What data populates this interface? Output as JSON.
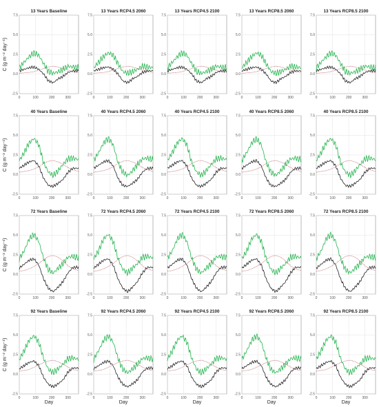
{
  "figure": {
    "xlabel": "Day",
    "ylabel": "C (g m⁻² day⁻¹)",
    "series_colors": {
      "green": "#22b34c",
      "black": "#222222",
      "red": "#b5535a"
    }
  },
  "chart_data": {
    "type": "line",
    "ylim": [
      -2.5,
      7.5
    ],
    "xlim": [
      0,
      365
    ],
    "xticks": [
      0,
      100,
      200,
      300
    ],
    "yticks": [
      -2.5,
      0.0,
      2.5,
      5.0,
      7.5
    ],
    "ytick_labels": [
      "-2.5",
      "0.0",
      "2.5",
      "5.0",
      "7.5"
    ],
    "grid": true,
    "legend": "none",
    "columns": [
      "Baseline",
      "RCP4.5 2060",
      "RCP4.5 2100",
      "RCP8.5 2060",
      "RCP8.5 2100"
    ],
    "panels": [
      {
        "title": "13 Years Baseline"
      },
      {
        "title": "13 Years RCP4.5 2060"
      },
      {
        "title": "13 Years RCP4.5 2100"
      },
      {
        "title": "13 Years RCP8.5 2060"
      },
      {
        "title": "13 Years RCP8.5 2100"
      },
      {
        "title": "40 Years Baseline"
      },
      {
        "title": "40 Years RCP4.5 2060"
      },
      {
        "title": "40 Years RCP4.5 2100"
      },
      {
        "title": "40 Years RCP8.5 2060"
      },
      {
        "title": "40 Years RCP8.5 2100"
      },
      {
        "title": "72 Years Baseline"
      },
      {
        "title": "72 Years RCP4.5 2060"
      },
      {
        "title": "72 Years RCP4.5 2100"
      },
      {
        "title": "72 Years RCP8.5 2060"
      },
      {
        "title": "72 Years RCP8.5 2100"
      },
      {
        "title": "92 Years Baseline"
      },
      {
        "title": "92 Years RCP4.5 2060"
      },
      {
        "title": "92 Years RCP4.5 2100"
      },
      {
        "title": "92 Years RCP8.5 2060"
      },
      {
        "title": "92 Years RCP8.5 2100"
      }
    ],
    "rows": [
      {
        "age": "13 Years",
        "series": [
          {
            "color": "green",
            "x": [
              0,
              30,
              60,
              90,
              120,
              150,
              180,
              210,
              240,
              270,
              300,
              330,
              365
            ],
            "y": [
              0.8,
              1.5,
              2.2,
              2.7,
              2.4,
              1.3,
              0.3,
              0.1,
              0.3,
              0.6,
              1.0,
              0.9,
              0.8
            ]
          },
          {
            "color": "black",
            "x": [
              0,
              30,
              60,
              90,
              120,
              150,
              180,
              210,
              240,
              270,
              300,
              330,
              365
            ],
            "y": [
              0.4,
              0.6,
              0.8,
              0.9,
              0.6,
              0.0,
              -0.9,
              -1.1,
              -0.6,
              -0.3,
              0.2,
              0.4,
              0.4
            ]
          },
          {
            "color": "red",
            "x": [
              0,
              30,
              60,
              90,
              120,
              150,
              180,
              210,
              240,
              270,
              300,
              330,
              365
            ],
            "y": [
              0.1,
              0.15,
              0.2,
              0.3,
              0.5,
              0.7,
              0.9,
              1.0,
              0.9,
              0.7,
              0.5,
              0.3,
              0.2
            ]
          }
        ]
      },
      {
        "age": "40 Years",
        "series": [
          {
            "color": "green",
            "x": [
              0,
              30,
              60,
              90,
              120,
              150,
              180,
              210,
              240,
              270,
              300,
              330,
              365
            ],
            "y": [
              1.8,
              2.8,
              4.0,
              4.6,
              3.8,
              1.5,
              0.3,
              -0.1,
              0.5,
              1.3,
              2.0,
              2.1,
              1.9
            ]
          },
          {
            "color": "black",
            "x": [
              0,
              30,
              60,
              90,
              120,
              150,
              180,
              210,
              240,
              270,
              300,
              330,
              365
            ],
            "y": [
              0.8,
              1.2,
              1.6,
              1.8,
              1.1,
              -0.5,
              -1.4,
              -1.5,
              -1.1,
              -0.6,
              0.3,
              0.8,
              0.8
            ]
          },
          {
            "color": "red",
            "x": [
              0,
              30,
              60,
              90,
              120,
              150,
              180,
              210,
              240,
              270,
              300,
              330,
              365
            ],
            "y": [
              0.3,
              0.4,
              0.5,
              0.7,
              1.0,
              1.4,
              1.7,
              1.8,
              1.6,
              1.3,
              0.9,
              0.6,
              0.4
            ]
          }
        ]
      },
      {
        "age": "72 Years",
        "series": [
          {
            "color": "green",
            "x": [
              0,
              30,
              60,
              90,
              120,
              150,
              180,
              210,
              240,
              270,
              300,
              330,
              365
            ],
            "y": [
              2.0,
              3.0,
              4.5,
              5.1,
              4.2,
              2.0,
              0.6,
              0.2,
              0.8,
              1.4,
              2.2,
              2.3,
              2.1
            ]
          },
          {
            "color": "black",
            "x": [
              0,
              30,
              60,
              90,
              120,
              150,
              180,
              210,
              240,
              270,
              300,
              330,
              365
            ],
            "y": [
              0.8,
              1.3,
              1.8,
              2.0,
              1.2,
              -0.6,
              -1.8,
              -2.2,
              -1.6,
              -0.9,
              0.2,
              0.9,
              0.9
            ]
          },
          {
            "color": "red",
            "x": [
              0,
              30,
              60,
              90,
              120,
              150,
              180,
              210,
              240,
              270,
              300,
              330,
              365
            ],
            "y": [
              0.4,
              0.5,
              0.7,
              1.0,
              1.4,
              1.9,
              2.3,
              2.4,
              2.2,
              1.7,
              1.1,
              0.7,
              0.5
            ]
          }
        ]
      },
      {
        "age": "92 Years",
        "series": [
          {
            "color": "green",
            "x": [
              0,
              30,
              60,
              90,
              120,
              150,
              180,
              210,
              240,
              270,
              300,
              330,
              365
            ],
            "y": [
              1.9,
              3.0,
              4.3,
              4.9,
              4.1,
              2.0,
              0.6,
              0.2,
              0.7,
              1.3,
              2.0,
              2.1,
              1.9
            ]
          },
          {
            "color": "black",
            "x": [
              0,
              30,
              60,
              90,
              120,
              150,
              180,
              210,
              240,
              270,
              300,
              330,
              365
            ],
            "y": [
              0.7,
              1.1,
              1.5,
              1.7,
              1.1,
              -0.4,
              -1.3,
              -1.6,
              -1.2,
              -0.7,
              0.3,
              0.8,
              0.8
            ]
          },
          {
            "color": "red",
            "x": [
              0,
              30,
              60,
              90,
              120,
              150,
              180,
              210,
              240,
              270,
              300,
              330,
              365
            ],
            "y": [
              0.4,
              0.5,
              0.6,
              0.9,
              1.2,
              1.5,
              1.7,
              1.8,
              1.6,
              1.3,
              0.9,
              0.6,
              0.5
            ]
          }
        ]
      }
    ]
  }
}
